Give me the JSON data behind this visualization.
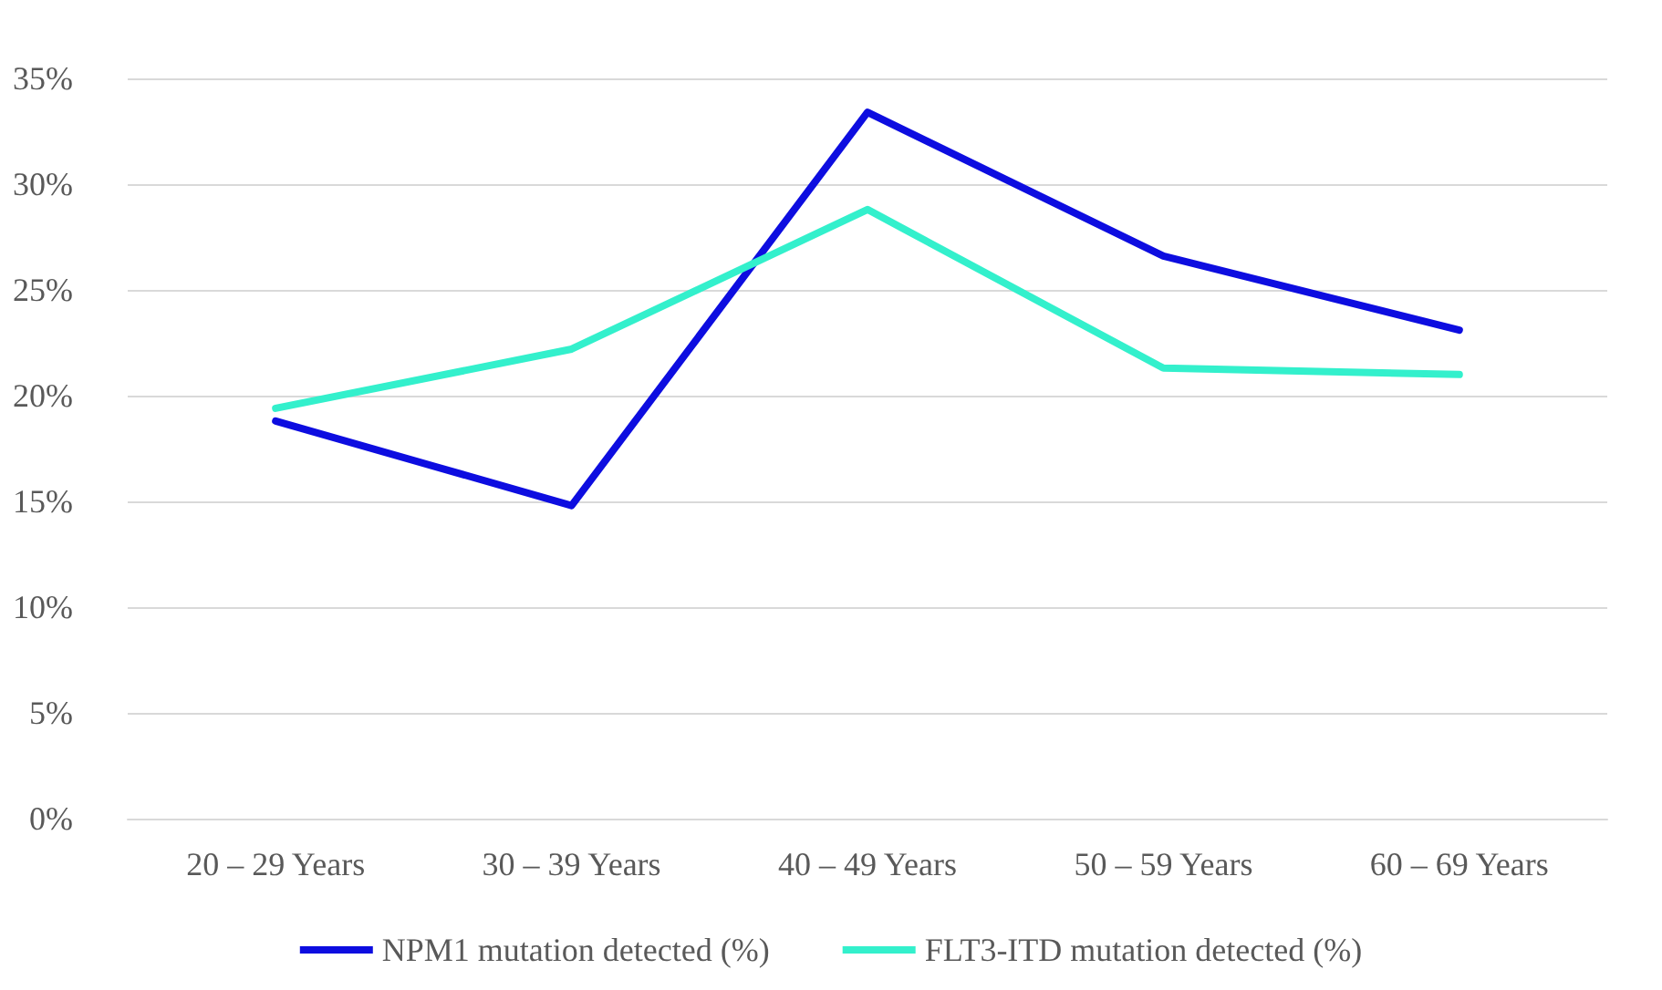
{
  "chart_data": {
    "type": "line",
    "categories": [
      "20 – 29 Years",
      "30 – 39 Years",
      "40 – 49 Years",
      "50 – 59 Years",
      "60 – 69 Years"
    ],
    "series": [
      {
        "name": "NPM1 mutation detected (%)",
        "color": "#0d0de0",
        "values": [
          18.8,
          14.8,
          33.4,
          26.6,
          23.1
        ]
      },
      {
        "name": "FLT3-ITD mutation detected (%)",
        "color": "#33f0cc",
        "values": [
          19.4,
          22.2,
          28.8,
          21.3,
          21.0
        ]
      }
    ],
    "ylim": [
      0,
      35
    ],
    "yticks": [
      {
        "value": 0,
        "label": "0%"
      },
      {
        "value": 5,
        "label": "5%"
      },
      {
        "value": 10,
        "label": "10%"
      },
      {
        "value": 15,
        "label": "15%"
      },
      {
        "value": 20,
        "label": "20%"
      },
      {
        "value": 25,
        "label": "25%"
      },
      {
        "value": 30,
        "label": "30%"
      },
      {
        "value": 35,
        "label": "35%"
      }
    ],
    "grid": "y",
    "legend": "bottom",
    "marker": "none",
    "line_style": "solid"
  }
}
